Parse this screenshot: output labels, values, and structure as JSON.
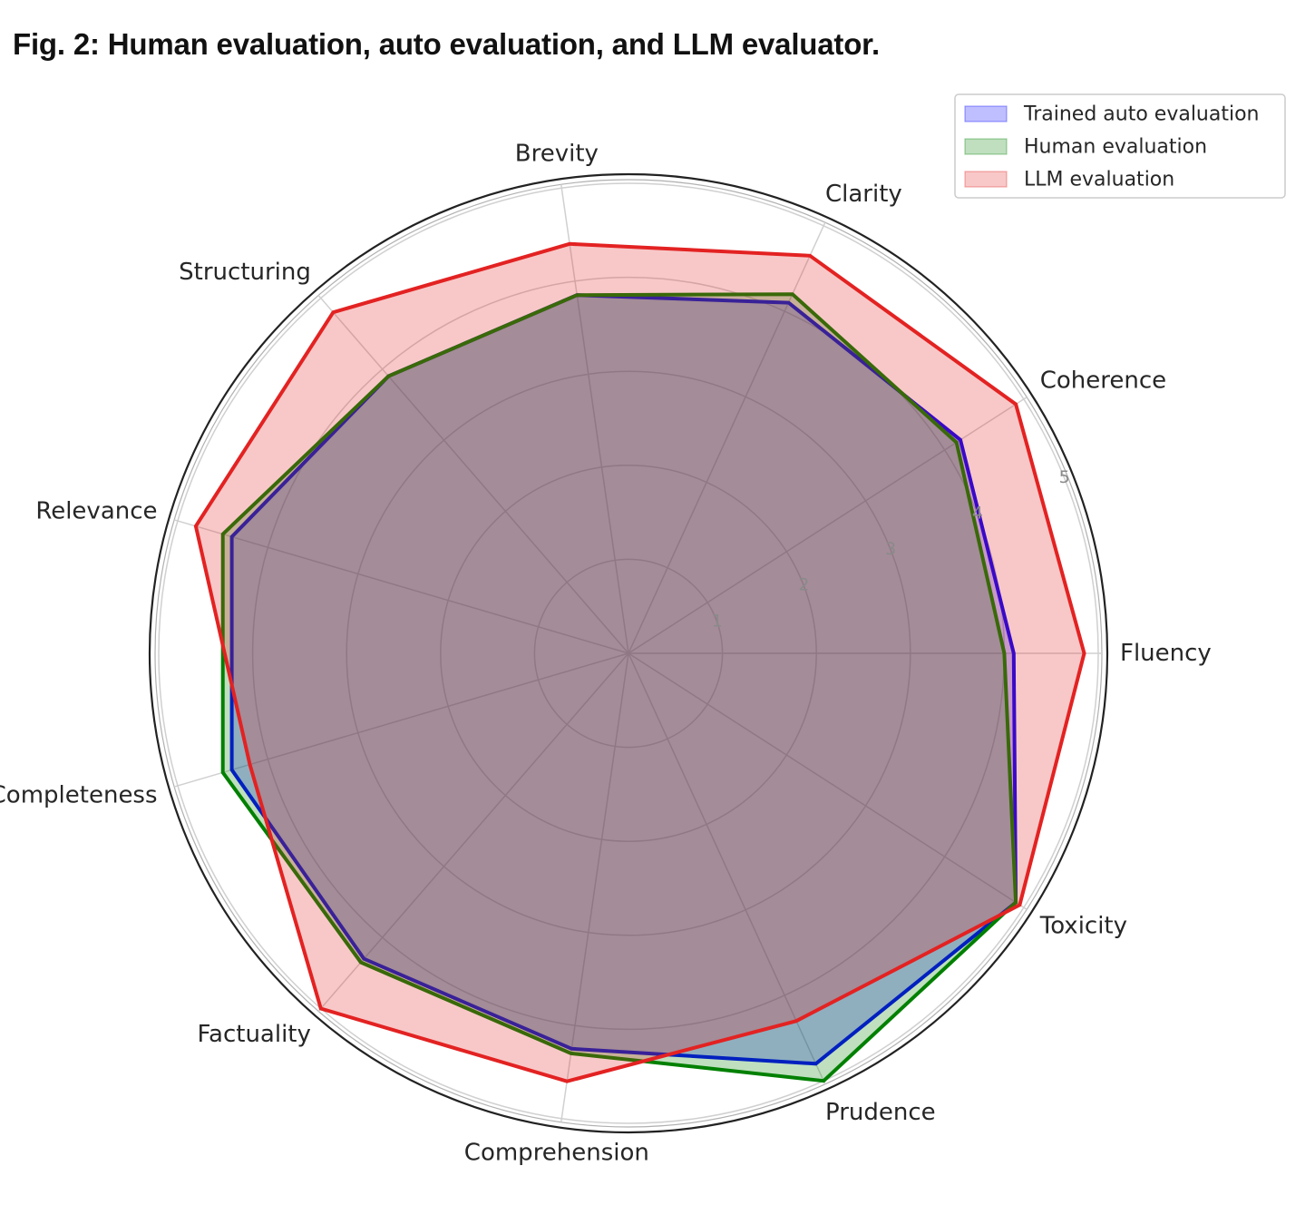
{
  "figure": {
    "title": "Fig. 2: Human evaluation, auto evaluation, and LLM evaluator."
  },
  "chart_data": {
    "type": "radar",
    "categories": [
      "Fluency",
      "Coherence",
      "Clarity",
      "Brevity",
      "Structuring",
      "Relevance",
      "Completeness",
      "Factuality",
      "Comprehension",
      "Prudence",
      "Toxicity"
    ],
    "rlim": [
      0,
      5
    ],
    "rticks": [
      1,
      2,
      3,
      4,
      5
    ],
    "series": [
      {
        "name": "Trained auto evaluation",
        "values": [
          4.1,
          4.2,
          4.1,
          3.85,
          3.9,
          4.4,
          4.4,
          4.3,
          4.25,
          4.8,
          4.9
        ],
        "color": "#0000ff",
        "fill": "#0000ff"
      },
      {
        "name": "Human evaluation",
        "values": [
          4.0,
          4.15,
          4.2,
          3.85,
          3.9,
          4.5,
          4.5,
          4.35,
          4.3,
          5.0,
          4.9
        ],
        "color": "#008000",
        "fill": "#008000"
      },
      {
        "name": "LLM evaluation",
        "values": [
          4.85,
          4.9,
          4.65,
          4.4,
          4.8,
          4.8,
          4.2,
          5.0,
          4.6,
          4.3,
          4.95
        ],
        "color": "#e32222",
        "fill": "#e32222"
      }
    ],
    "legend": "top-right"
  }
}
